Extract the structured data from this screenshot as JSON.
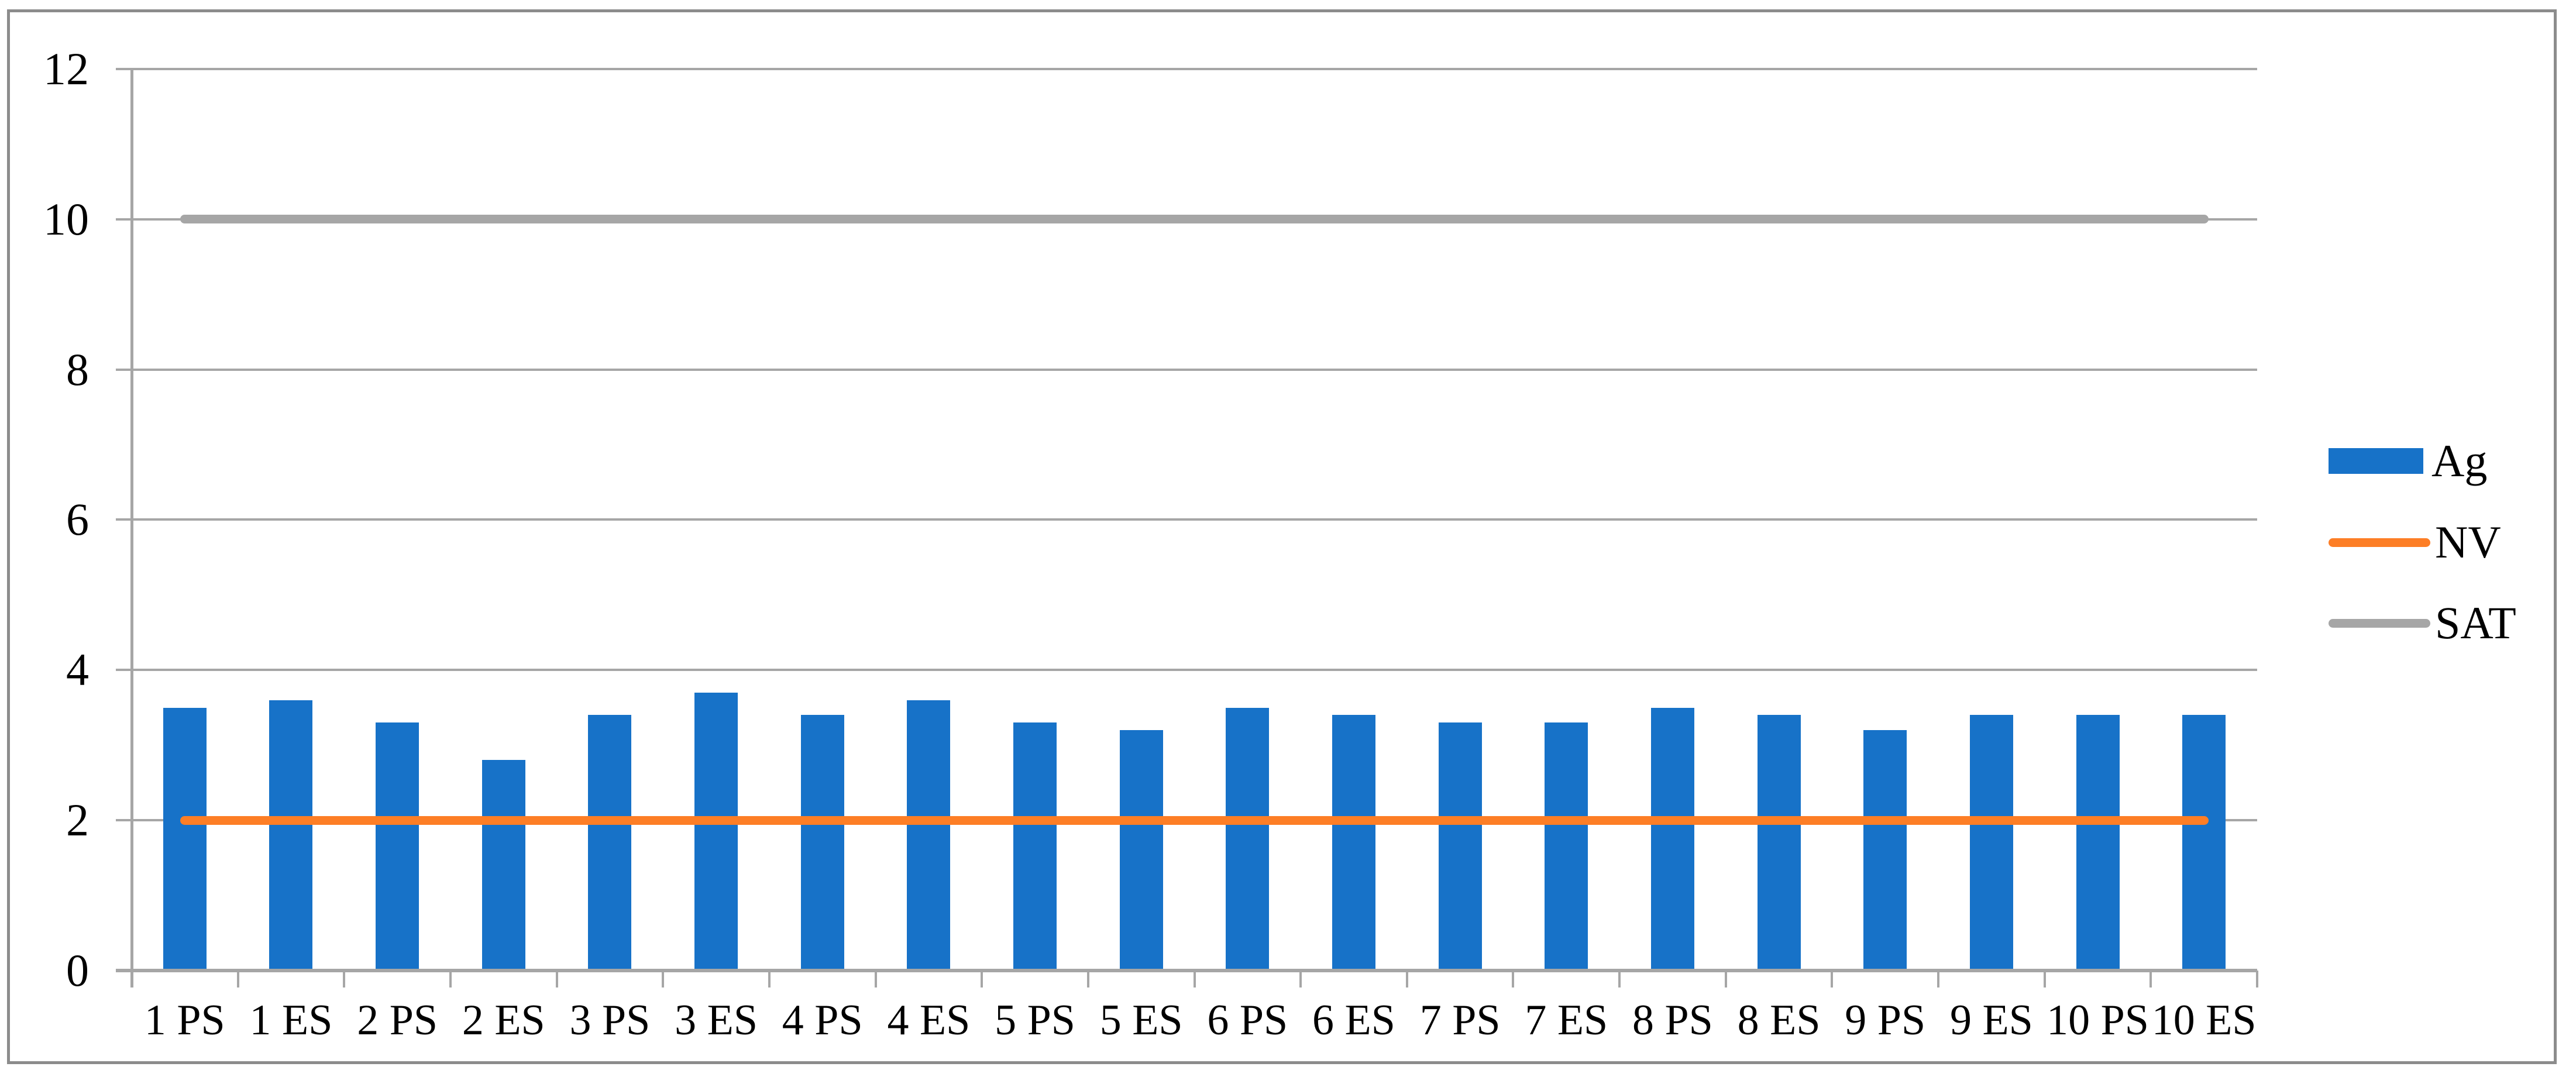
{
  "chart_data": {
    "type": "bar",
    "title": "",
    "xlabel": "",
    "ylabel": "",
    "categories": [
      "1 PS",
      "1 ES",
      "2 PS",
      "2 ES",
      "3 PS",
      "3 ES",
      "4 PS",
      "4 ES",
      "5 PS",
      "5 ES",
      "6 PS",
      "6 ES",
      "7 PS",
      "7 ES",
      "8 PS",
      "8 ES",
      "9 PS",
      "9 ES",
      "10 PS",
      "10 ES"
    ],
    "series": [
      {
        "name": "Ag",
        "type": "bar",
        "color": "#1772C8",
        "values": [
          3.5,
          3.6,
          3.3,
          2.8,
          3.4,
          3.7,
          3.4,
          3.6,
          3.3,
          3.2,
          3.5,
          3.4,
          3.3,
          3.3,
          3.5,
          3.4,
          3.2,
          3.4,
          3.4,
          3.4
        ]
      },
      {
        "name": "NV",
        "type": "line",
        "color": "#FD7E26",
        "constant_value": 2,
        "values": [
          2,
          2,
          2,
          2,
          2,
          2,
          2,
          2,
          2,
          2,
          2,
          2,
          2,
          2,
          2,
          2,
          2,
          2,
          2,
          2
        ]
      },
      {
        "name": "SAT",
        "type": "line",
        "color": "#A6A6A6",
        "constant_value": 10,
        "values": [
          10,
          10,
          10,
          10,
          10,
          10,
          10,
          10,
          10,
          10,
          10,
          10,
          10,
          10,
          10,
          10,
          10,
          10,
          10,
          10
        ]
      }
    ],
    "yticks": [
      "0",
      "2",
      "4",
      "6",
      "8",
      "10",
      "12"
    ],
    "ylim": [
      0,
      12
    ],
    "grid": true,
    "gridline_color": "#A6A6A6",
    "axis_color": "#A6A6A6",
    "frame_color": "#8C8C8C",
    "legend_position": "right"
  }
}
